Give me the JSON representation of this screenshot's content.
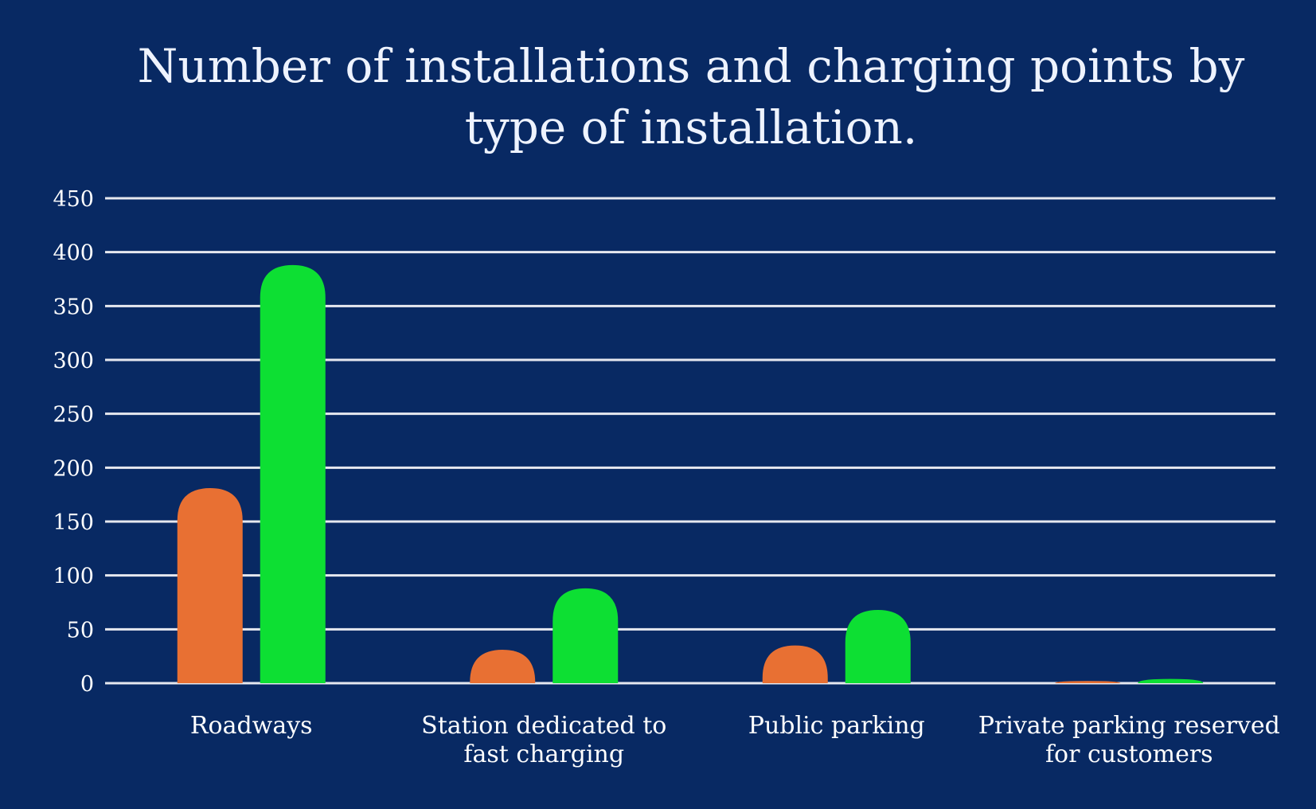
{
  "chart_data": {
    "type": "bar",
    "title_lines": [
      "Number of installations and charging points by",
      "type of installation."
    ],
    "xlabel": "",
    "ylabel": "",
    "ylim": [
      0,
      450
    ],
    "y_ticks": [
      0,
      50,
      100,
      150,
      200,
      250,
      300,
      350,
      400,
      450
    ],
    "grid": true,
    "legend": "none",
    "categories": [
      [
        "Roadways"
      ],
      [
        "Station dedicated to",
        "fast charging"
      ],
      [
        "Public parking"
      ],
      [
        "Private parking reserved",
        "for customers"
      ]
    ],
    "series": [
      {
        "values": [
          181,
          31,
          35,
          2
        ],
        "color": "#e87033"
      },
      {
        "values": [
          388,
          88,
          68,
          4
        ],
        "color": "#0ddf33"
      }
    ]
  }
}
